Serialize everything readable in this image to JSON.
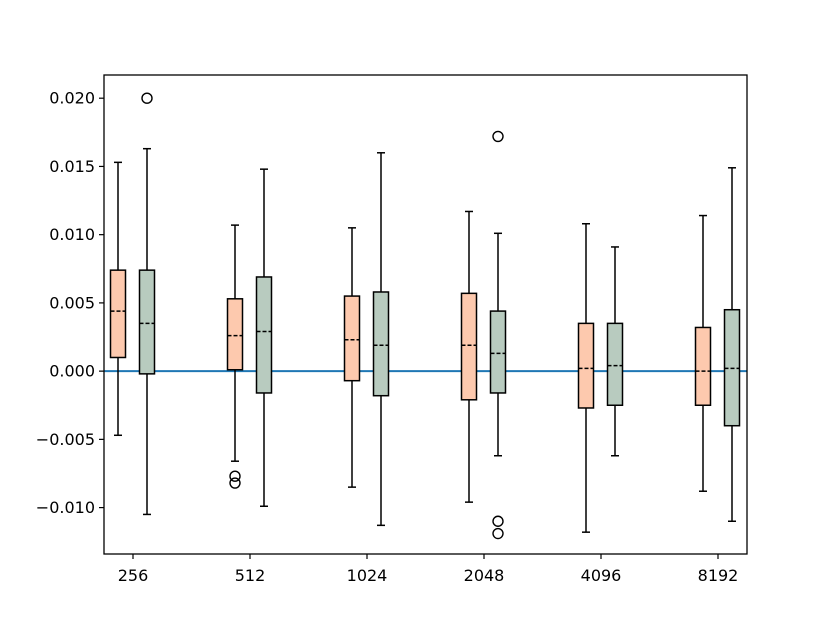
{
  "chart_data": {
    "type": "box",
    "categories": [
      "256",
      "512",
      "1024",
      "2048",
      "4096",
      "8192"
    ],
    "ylim": [
      -0.0134,
      0.0217
    ],
    "yticks": [
      -0.01,
      -0.005,
      0.0,
      0.005,
      0.01,
      0.015,
      0.02
    ],
    "ytick_labels": [
      "−0.010",
      "−0.005",
      "0.000",
      "0.005",
      "0.010",
      "0.015",
      "0.020"
    ],
    "reference_line": {
      "y": 0.0,
      "color": "#1f77b4"
    },
    "grid": false,
    "series": [
      {
        "color": "#fdc9ae",
        "boxes": [
          {
            "whisker_low": -0.0047,
            "q1": 0.001,
            "median": 0.0044,
            "q3": 0.0074,
            "whisker_high": 0.0153,
            "outliers": []
          },
          {
            "whisker_low": -0.0066,
            "q1": 0.0001,
            "median": 0.0026,
            "q3": 0.0053,
            "whisker_high": 0.0107,
            "outliers": [
              -0.0077,
              -0.0082
            ]
          },
          {
            "whisker_low": -0.0085,
            "q1": -0.0007,
            "median": 0.0023,
            "q3": 0.0055,
            "whisker_high": 0.0105,
            "outliers": []
          },
          {
            "whisker_low": -0.0096,
            "q1": -0.0021,
            "median": 0.0019,
            "q3": 0.0057,
            "whisker_high": 0.0117,
            "outliers": []
          },
          {
            "whisker_low": -0.0118,
            "q1": -0.0027,
            "median": 0.0002,
            "q3": 0.0035,
            "whisker_high": 0.0108,
            "outliers": []
          },
          {
            "whisker_low": -0.0088,
            "q1": -0.0025,
            "median": 0.0,
            "q3": 0.0032,
            "whisker_high": 0.0114,
            "outliers": []
          }
        ]
      },
      {
        "color": "#b8cbbf",
        "boxes": [
          {
            "whisker_low": -0.0105,
            "q1": -0.0002,
            "median": 0.0035,
            "q3": 0.0074,
            "whisker_high": 0.0163,
            "outliers": [
              0.02
            ]
          },
          {
            "whisker_low": -0.0099,
            "q1": -0.0016,
            "median": 0.0029,
            "q3": 0.0069,
            "whisker_high": 0.0148,
            "outliers": []
          },
          {
            "whisker_low": -0.0113,
            "q1": -0.0018,
            "median": 0.0019,
            "q3": 0.0058,
            "whisker_high": 0.016,
            "outliers": []
          },
          {
            "whisker_low": -0.0062,
            "q1": -0.0016,
            "median": 0.0013,
            "q3": 0.0044,
            "whisker_high": 0.0101,
            "outliers": [
              0.0172,
              -0.011,
              -0.0119
            ]
          },
          {
            "whisker_low": -0.0062,
            "q1": -0.0025,
            "median": 0.0004,
            "q3": 0.0035,
            "whisker_high": 0.0091,
            "outliers": []
          },
          {
            "whisker_low": -0.011,
            "q1": -0.004,
            "median": 0.0002,
            "q3": 0.0045,
            "whisker_high": 0.0149,
            "outliers": []
          }
        ]
      }
    ]
  }
}
